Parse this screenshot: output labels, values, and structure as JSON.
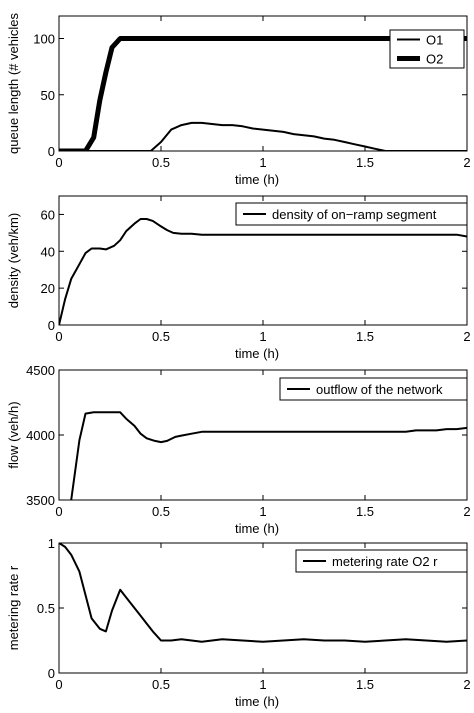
{
  "chart_data": [
    {
      "type": "line",
      "xlabel": "time (h)",
      "ylabel": "queue length (# vehicles",
      "xlim": [
        0,
        2
      ],
      "ylim": [
        0,
        120
      ],
      "xticks": [
        0,
        0.5,
        1,
        1.5,
        2
      ],
      "xtick_labels": [
        "0",
        "0.5",
        "1",
        "1.5",
        "2"
      ],
      "yticks": [
        0,
        50,
        100
      ],
      "ytick_labels": [
        "0",
        "50",
        "100"
      ],
      "legend_position": "top-right",
      "grid": false,
      "series": [
        {
          "name": "O1",
          "line_width": "thin",
          "x": [
            0,
            0.45,
            0.5,
            0.55,
            0.6,
            0.65,
            0.7,
            0.75,
            0.8,
            0.85,
            0.9,
            0.95,
            1.0,
            1.05,
            1.1,
            1.15,
            1.2,
            1.25,
            1.3,
            1.35,
            1.4,
            1.45,
            1.5,
            1.55,
            1.6,
            2.0
          ],
          "y": [
            0,
            0,
            8,
            19,
            23,
            25,
            25,
            24,
            23,
            23,
            22,
            20,
            19,
            18,
            17,
            15,
            14,
            13,
            11,
            10,
            8,
            6,
            4,
            2,
            0,
            0
          ]
        },
        {
          "name": "O2",
          "line_width": "thick",
          "x": [
            0,
            0.13,
            0.17,
            0.2,
            0.23,
            0.26,
            0.3,
            2.0
          ],
          "y": [
            0,
            0,
            12,
            45,
            70,
            92,
            100,
            100
          ]
        }
      ]
    },
    {
      "type": "line",
      "xlabel": "time (h)",
      "ylabel": "density (veh/km)",
      "xlim": [
        0,
        2
      ],
      "ylim": [
        0,
        70
      ],
      "xticks": [
        0,
        0.5,
        1,
        1.5,
        2
      ],
      "xtick_labels": [
        "0",
        "0.5",
        "1",
        "1.5",
        "2"
      ],
      "yticks": [
        0,
        20,
        40,
        60
      ],
      "ytick_labels": [
        "0",
        "20",
        "40",
        "60"
      ],
      "legend_position": "top-right",
      "grid": false,
      "series": [
        {
          "name": "density of on−ramp segment",
          "line_width": "thin",
          "x": [
            0,
            0.03,
            0.06,
            0.1,
            0.13,
            0.16,
            0.2,
            0.23,
            0.27,
            0.3,
            0.33,
            0.37,
            0.4,
            0.43,
            0.46,
            0.5,
            0.53,
            0.56,
            0.6,
            0.65,
            0.7,
            0.8,
            1.0,
            1.2,
            1.5,
            1.8,
            1.95,
            2.0
          ],
          "y": [
            0,
            14,
            25,
            33,
            39,
            41.5,
            41.5,
            41,
            43,
            46,
            51,
            55,
            57.5,
            57.5,
            56.5,
            53.5,
            51.5,
            50,
            49.5,
            49.5,
            49,
            49,
            49,
            49,
            49,
            49,
            49,
            48
          ]
        }
      ]
    },
    {
      "type": "line",
      "xlabel": "time (h)",
      "ylabel": "flow (veh/h)",
      "xlim": [
        0,
        2
      ],
      "ylim": [
        3500,
        4500
      ],
      "xticks": [
        0,
        0.5,
        1,
        1.5,
        2
      ],
      "xtick_labels": [
        "0",
        "0.5",
        "1",
        "1.5",
        "2"
      ],
      "yticks": [
        3500,
        4000,
        4500
      ],
      "ytick_labels": [
        "3500",
        "4000",
        "4500"
      ],
      "legend_position": "top-right",
      "grid": false,
      "series": [
        {
          "name": "outflow of the network",
          "line_width": "thin",
          "x": [
            0.06,
            0.1,
            0.13,
            0.17,
            0.3,
            0.33,
            0.37,
            0.4,
            0.43,
            0.47,
            0.5,
            0.53,
            0.57,
            0.6,
            0.65,
            0.7,
            1.0,
            1.5,
            1.6,
            1.7,
            1.75,
            1.8,
            1.85,
            1.9,
            1.95,
            2.0
          ],
          "y": [
            3500,
            3960,
            4165,
            4175,
            4175,
            4125,
            4070,
            4010,
            3975,
            3955,
            3945,
            3955,
            3985,
            3995,
            4010,
            4025,
            4025,
            4025,
            4025,
            4025,
            4035,
            4035,
            4035,
            4045,
            4045,
            4055
          ]
        }
      ]
    },
    {
      "type": "line",
      "xlabel": "time (h)",
      "ylabel": "metering rate r",
      "xlim": [
        0,
        2
      ],
      "ylim": [
        0,
        1
      ],
      "xticks": [
        0,
        0.5,
        1,
        1.5,
        2
      ],
      "xtick_labels": [
        "0",
        "0.5",
        "1",
        "1.5",
        "2"
      ],
      "yticks": [
        0,
        0.5,
        1
      ],
      "ytick_labels": [
        "0",
        "0.5",
        "1"
      ],
      "legend_position": "top-right",
      "grid": false,
      "series": [
        {
          "name": "metering rate O2 r",
          "line_width": "thin",
          "x": [
            0,
            0.03,
            0.06,
            0.1,
            0.13,
            0.16,
            0.2,
            0.23,
            0.26,
            0.3,
            0.33,
            0.36,
            0.4,
            0.43,
            0.46,
            0.5,
            0.55,
            0.6,
            0.7,
            0.8,
            0.9,
            1.0,
            1.1,
            1.2,
            1.3,
            1.4,
            1.5,
            1.6,
            1.7,
            1.8,
            1.9,
            2.0
          ],
          "y": [
            1,
            0.97,
            0.91,
            0.78,
            0.6,
            0.42,
            0.34,
            0.32,
            0.48,
            0.64,
            0.58,
            0.52,
            0.44,
            0.38,
            0.32,
            0.25,
            0.25,
            0.26,
            0.24,
            0.26,
            0.25,
            0.24,
            0.25,
            0.26,
            0.25,
            0.25,
            0.24,
            0.25,
            0.26,
            0.25,
            0.24,
            0.25
          ]
        }
      ]
    }
  ]
}
